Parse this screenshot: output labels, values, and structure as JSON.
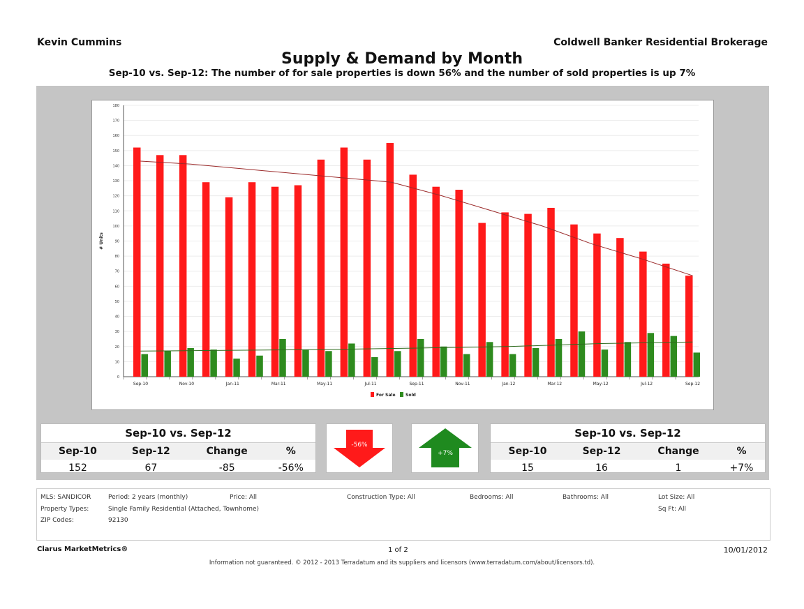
{
  "header": {
    "agent": "Kevin Cummins",
    "brokerage": "Coldwell Banker Residential Brokerage",
    "title": "Supply & Demand by Month",
    "subtitle": "Sep-10 vs. Sep-12:  The number of for sale properties is down 56% and the number of sold properties is up 7%"
  },
  "chart_data": {
    "type": "bar",
    "ylabel": "# Units",
    "ylim": [
      0,
      180
    ],
    "y_ticks": [
      "0",
      "10",
      "20",
      "30",
      "40",
      "50",
      "60",
      "70",
      "80",
      "90",
      "100",
      "110",
      "120",
      "130",
      "140",
      "150",
      "160",
      "170",
      "180"
    ],
    "categories": [
      "Sep-10",
      "Oct-10",
      "Nov-10",
      "Dec-10",
      "Jan-11",
      "Feb-11",
      "Mar-11",
      "Apr-11",
      "May-11",
      "Jun-11",
      "Jul-11",
      "Aug-11",
      "Sep-11",
      "Oct-11",
      "Nov-11",
      "Dec-11",
      "Jan-12",
      "Feb-12",
      "Mar-12",
      "Apr-12",
      "May-12",
      "Jun-12",
      "Jul-12",
      "Aug-12",
      "Sep-12"
    ],
    "x_tick_labels": [
      "Sep-10",
      "",
      "Nov-10",
      "",
      "Jan-11",
      "",
      "Mar-11",
      "",
      "May-11",
      "",
      "Jul-11",
      "",
      "Sep-11",
      "",
      "Nov-11",
      "",
      "Jan-12",
      "",
      "Mar-12",
      "",
      "May-12",
      "",
      "Jul-12",
      "",
      "Sep-12"
    ],
    "series": [
      {
        "name": "For Sale",
        "color": "#ff1a1a",
        "values": [
          152,
          147,
          147,
          129,
          119,
          129,
          126,
          127,
          144,
          152,
          144,
          155,
          134,
          126,
          124,
          102,
          109,
          108,
          112,
          101,
          95,
          92,
          83,
          75,
          67
        ]
      },
      {
        "name": "Sold",
        "color": "#2e8b1e",
        "values": [
          15,
          17,
          19,
          18,
          12,
          14,
          25,
          18,
          17,
          22,
          13,
          17,
          25,
          20,
          15,
          23,
          15,
          19,
          25,
          30,
          18,
          23,
          29,
          27,
          16
        ]
      }
    ],
    "trendlines": [
      {
        "series": "For Sale",
        "color": "#9b2a2a",
        "values": [
          143,
          141,
          138,
          135,
          132,
          129,
          120,
          110,
          100,
          88,
          78,
          67
        ]
      },
      {
        "series": "Sold",
        "color": "#2e6b1e",
        "values": [
          17,
          17.5,
          18,
          19,
          20,
          22,
          23
        ]
      }
    ],
    "legend": "bottom",
    "grid": true
  },
  "summary_left": {
    "heading": "Sep-10 vs. Sep-12",
    "columns": [
      "Sep-10",
      "Sep-12",
      "Change",
      "%"
    ],
    "values": [
      "152",
      "67",
      "-85",
      "-56%"
    ]
  },
  "summary_right": {
    "heading": "Sep-10 vs. Sep-12",
    "columns": [
      "Sep-10",
      "Sep-12",
      "Change",
      "%"
    ],
    "values": [
      "15",
      "16",
      "1",
      "+7%"
    ]
  },
  "arrows": {
    "down_label": "-56%",
    "down_color": "#ff1a1a",
    "up_label": "+7%",
    "up_color": "#1f8a1f"
  },
  "filters": {
    "mls": "MLS: SANDICOR",
    "period": "Period:  2 years (monthly)",
    "price": "Price:  All",
    "construction": "Construction Type: All",
    "bedrooms": "Bedrooms:  All",
    "bathrooms": "Bathrooms:  All",
    "lot_size": "Lot Size: All",
    "property_types": "Property Types:",
    "property_types_value": "Single Family Residential (Attached, Townhome)",
    "sq_ft": "Sq Ft:    All",
    "zip_label": "ZIP Codes:",
    "zip_value": "92130"
  },
  "footer": {
    "left": "Clarus MarketMetrics®",
    "page": "1 of 2",
    "date": "10/01/2012",
    "disclaimer": "Information not guaranteed.  © 2012 - 2013 Terradatum and its suppliers and licensors (www.terradatum.com/about/licensors.td)."
  }
}
